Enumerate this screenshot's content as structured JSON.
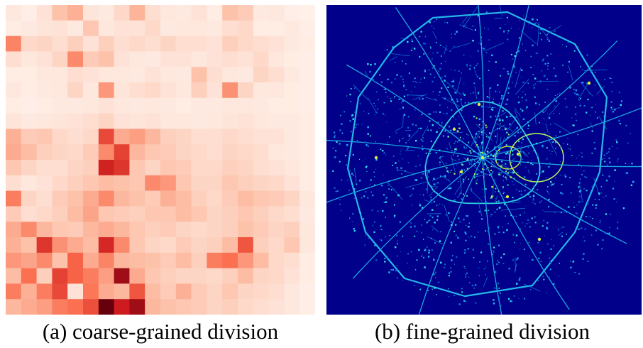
{
  "panels": [
    {
      "id": "a",
      "caption": "(a) coarse-grained division",
      "colormap": "Reds",
      "grid_size": 20,
      "grid_intensity": [
        [
          0.06,
          0.03,
          0.08,
          0.22,
          0.28,
          0.07,
          0.05,
          0.12,
          0.27,
          0.1,
          0.06,
          0.05,
          0.08,
          0.04,
          0.22,
          0.18,
          0.05,
          0.06,
          0.03,
          0.02
        ],
        [
          0.04,
          0.05,
          0.07,
          0.08,
          0.05,
          0.2,
          0.06,
          0.08,
          0.08,
          0.12,
          0.05,
          0.06,
          0.06,
          0.05,
          0.1,
          0.12,
          0.04,
          0.04,
          0.05,
          0.03
        ],
        [
          0.42,
          0.12,
          0.14,
          0.1,
          0.16,
          0.08,
          0.16,
          0.1,
          0.12,
          0.1,
          0.14,
          0.1,
          0.1,
          0.08,
          0.16,
          0.12,
          0.1,
          0.08,
          0.05,
          0.04
        ],
        [
          0.1,
          0.06,
          0.08,
          0.14,
          0.4,
          0.18,
          0.22,
          0.08,
          0.06,
          0.05,
          0.08,
          0.08,
          0.06,
          0.08,
          0.1,
          0.08,
          0.12,
          0.06,
          0.04,
          0.03
        ],
        [
          0.04,
          0.04,
          0.06,
          0.06,
          0.1,
          0.08,
          0.06,
          0.06,
          0.05,
          0.08,
          0.06,
          0.05,
          0.22,
          0.1,
          0.06,
          0.05,
          0.14,
          0.1,
          0.05,
          0.03
        ],
        [
          0.06,
          0.04,
          0.05,
          0.06,
          0.14,
          0.06,
          0.36,
          0.07,
          0.1,
          0.12,
          0.08,
          0.06,
          0.16,
          0.08,
          0.38,
          0.14,
          0.06,
          0.06,
          0.04,
          0.03
        ],
        [
          0.04,
          0.03,
          0.04,
          0.05,
          0.05,
          0.06,
          0.08,
          0.06,
          0.05,
          0.06,
          0.05,
          0.04,
          0.05,
          0.05,
          0.06,
          0.06,
          0.05,
          0.04,
          0.04,
          0.03
        ],
        [
          0.07,
          0.05,
          0.06,
          0.07,
          0.08,
          0.1,
          0.14,
          0.08,
          0.07,
          0.08,
          0.06,
          0.06,
          0.05,
          0.06,
          0.07,
          0.08,
          0.06,
          0.05,
          0.05,
          0.04
        ],
        [
          0.28,
          0.18,
          0.2,
          0.12,
          0.1,
          0.12,
          0.6,
          0.3,
          0.34,
          0.26,
          0.16,
          0.14,
          0.1,
          0.1,
          0.12,
          0.1,
          0.08,
          0.08,
          0.05,
          0.04
        ],
        [
          0.3,
          0.24,
          0.16,
          0.14,
          0.12,
          0.18,
          0.4,
          0.62,
          0.26,
          0.2,
          0.18,
          0.14,
          0.12,
          0.1,
          0.14,
          0.12,
          0.1,
          0.06,
          0.05,
          0.04
        ],
        [
          0.2,
          0.14,
          0.1,
          0.1,
          0.14,
          0.16,
          0.72,
          0.66,
          0.2,
          0.14,
          0.2,
          0.18,
          0.12,
          0.12,
          0.16,
          0.14,
          0.1,
          0.08,
          0.06,
          0.04
        ],
        [
          0.1,
          0.06,
          0.08,
          0.12,
          0.16,
          0.2,
          0.24,
          0.22,
          0.2,
          0.4,
          0.36,
          0.2,
          0.14,
          0.14,
          0.2,
          0.16,
          0.14,
          0.12,
          0.08,
          0.04
        ],
        [
          0.44,
          0.14,
          0.1,
          0.18,
          0.22,
          0.3,
          0.4,
          0.26,
          0.22,
          0.18,
          0.28,
          0.24,
          0.16,
          0.12,
          0.18,
          0.24,
          0.2,
          0.18,
          0.14,
          0.06
        ],
        [
          0.18,
          0.1,
          0.12,
          0.16,
          0.24,
          0.32,
          0.2,
          0.18,
          0.16,
          0.2,
          0.2,
          0.24,
          0.2,
          0.14,
          0.16,
          0.2,
          0.16,
          0.12,
          0.1,
          0.05
        ],
        [
          0.3,
          0.4,
          0.26,
          0.2,
          0.18,
          0.26,
          0.3,
          0.26,
          0.2,
          0.16,
          0.18,
          0.14,
          0.12,
          0.14,
          0.16,
          0.22,
          0.18,
          0.14,
          0.16,
          0.06
        ],
        [
          0.28,
          0.22,
          0.66,
          0.38,
          0.3,
          0.24,
          0.7,
          0.4,
          0.2,
          0.14,
          0.12,
          0.18,
          0.14,
          0.16,
          0.24,
          0.56,
          0.16,
          0.12,
          0.2,
          0.06
        ],
        [
          0.36,
          0.32,
          0.4,
          0.22,
          0.52,
          0.3,
          0.42,
          0.26,
          0.24,
          0.22,
          0.18,
          0.24,
          0.16,
          0.44,
          0.48,
          0.36,
          0.24,
          0.12,
          0.1,
          0.04
        ],
        [
          0.24,
          0.48,
          0.16,
          0.62,
          0.52,
          0.44,
          0.34,
          0.86,
          0.3,
          0.2,
          0.16,
          0.14,
          0.14,
          0.12,
          0.16,
          0.24,
          0.14,
          0.12,
          0.08,
          0.04
        ],
        [
          0.44,
          0.28,
          0.44,
          0.6,
          0.08,
          0.46,
          0.3,
          0.26,
          0.56,
          0.24,
          0.18,
          0.28,
          0.18,
          0.14,
          0.2,
          0.14,
          0.12,
          0.1,
          0.06,
          0.03
        ],
        [
          0.26,
          0.3,
          0.34,
          0.44,
          0.48,
          0.58,
          1.0,
          0.74,
          0.86,
          0.26,
          0.22,
          0.2,
          0.18,
          0.14,
          0.16,
          0.12,
          0.1,
          0.08,
          0.06,
          0.03
        ]
      ]
    },
    {
      "id": "b",
      "caption": "(b) fine-grained division",
      "colormap": "jet",
      "background_color": "#00008a"
    }
  ]
}
